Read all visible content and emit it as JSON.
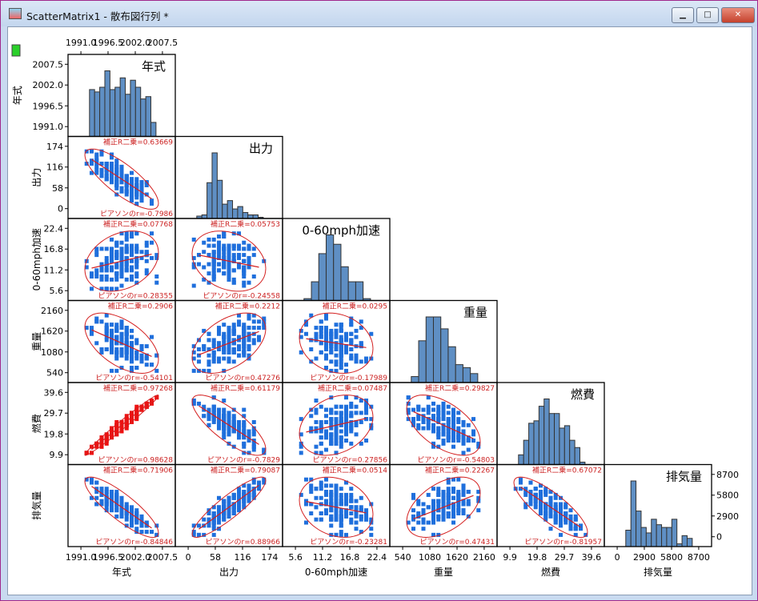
{
  "window": {
    "title": "ScatterMatrix1 - 散布図行列 *",
    "minimize": "▁",
    "maximize": "□",
    "close": "✕"
  },
  "colors": {
    "point": "#1f6fdc",
    "highlight_point": "#ee1111",
    "bar": "#5f8fc4",
    "fit": "#d42020",
    "annotation": "#cc2222"
  },
  "chart_data": {
    "type": "scatter-matrix",
    "variables": [
      {
        "name": "年式",
        "ticks": [
          "1991.0",
          "1996.5",
          "2002.0",
          "2007.5"
        ],
        "hist": [
          20,
          19,
          21,
          28,
          20,
          21,
          25,
          18,
          24,
          21,
          16,
          17,
          6
        ]
      },
      {
        "name": "出力",
        "ticks": [
          "0",
          "58",
          "116",
          "174"
        ],
        "hist": [
          2,
          3,
          30,
          55,
          32,
          12,
          15,
          8,
          10,
          5,
          3,
          3,
          1
        ]
      },
      {
        "name": "0-60mph加速",
        "ticks": [
          "5.6",
          "11.2",
          "16.8",
          "22.4"
        ],
        "hist": [
          1,
          10,
          25,
          35,
          30,
          18,
          10,
          10,
          1
        ]
      },
      {
        "name": "重量",
        "ticks": [
          "540",
          "1080",
          "1620",
          "2160"
        ],
        "hist": [
          2,
          14,
          22,
          22,
          18,
          12,
          6,
          5,
          3
        ]
      },
      {
        "name": "燃費",
        "ticks": [
          "9.9",
          "19.8",
          "29.7",
          "39.6"
        ],
        "hist": [
          4,
          10,
          17,
          18,
          24,
          27,
          21,
          21,
          15,
          16,
          10,
          7,
          1
        ]
      },
      {
        "name": "排気量",
        "ticks": [
          "0",
          "2900",
          "5800",
          "8700"
        ],
        "hist": [
          6,
          24,
          13,
          7,
          5,
          10,
          8,
          7,
          7,
          10,
          1,
          4,
          3
        ]
      }
    ],
    "adj_r2_label": "補正R二乗=",
    "pearson_label": "ピアソンのr=",
    "pairs": [
      {
        "row": 1,
        "col": 0,
        "adj_r2": "0.63669",
        "r": "-0.7986"
      },
      {
        "row": 2,
        "col": 0,
        "adj_r2": "0.07768",
        "r": "0.28355"
      },
      {
        "row": 2,
        "col": 1,
        "adj_r2": "0.05753",
        "r": "-0.24558"
      },
      {
        "row": 3,
        "col": 0,
        "adj_r2": "0.2906",
        "r": "-0.54101"
      },
      {
        "row": 3,
        "col": 1,
        "adj_r2": "0.2212",
        "r": "0.47276"
      },
      {
        "row": 3,
        "col": 2,
        "adj_r2": "0.0295",
        "r": "-0.17989"
      },
      {
        "row": 4,
        "col": 0,
        "adj_r2": "0.97268",
        "r": "0.98628",
        "highlight": true
      },
      {
        "row": 4,
        "col": 1,
        "adj_r2": "0.61179",
        "r": "-0.7829"
      },
      {
        "row": 4,
        "col": 2,
        "adj_r2": "0.07487",
        "r": "0.27856"
      },
      {
        "row": 4,
        "col": 3,
        "adj_r2": "0.29827",
        "r": "-0.54803"
      },
      {
        "row": 5,
        "col": 0,
        "adj_r2": "0.71906",
        "r": "-0.84846"
      },
      {
        "row": 5,
        "col": 1,
        "adj_r2": "0.79087",
        "r": "0.88966"
      },
      {
        "row": 5,
        "col": 2,
        "adj_r2": "0.0514",
        "r": "-0.23281"
      },
      {
        "row": 5,
        "col": 3,
        "adj_r2": "0.22267",
        "r": "0.47431"
      },
      {
        "row": 5,
        "col": 4,
        "adj_r2": "0.67072",
        "r": "-0.81957"
      }
    ]
  }
}
